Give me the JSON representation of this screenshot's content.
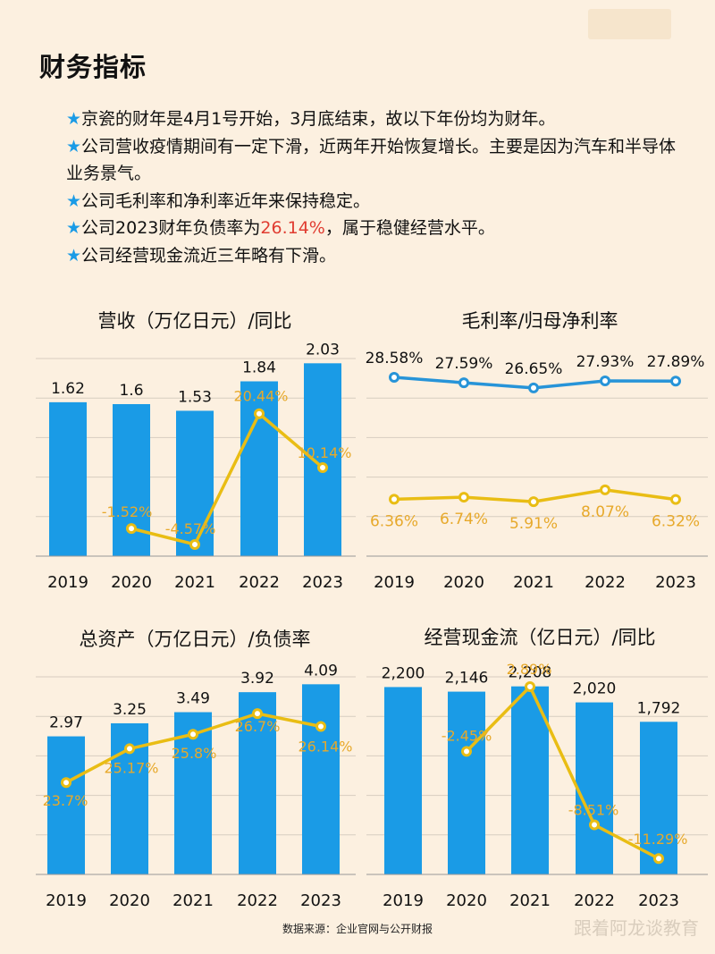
{
  "title": "财务指标",
  "bullets": [
    {
      "pre": "京瓷的财年是4月1号开始，3月底结束，故以下年份均为财年。"
    },
    {
      "pre": "公司营收疫情期间有一定下滑，近两年开始恢复增长。主要是因为汽车和半导体业务景气。"
    },
    {
      "pre": "公司毛利率和净利率近年来保持稳定。"
    },
    {
      "pre": "公司2023财年负债率为",
      "highlight": "26.14%",
      "post": "，属于稳健经营水平。"
    },
    {
      "pre": "公司经营现金流近三年略有下滑。"
    }
  ],
  "bullet_marker": "★",
  "colors": {
    "bar": "#1a9be6",
    "line": "#e9bd14",
    "line_blue": "#2794d8",
    "grid": "#d7cdc0",
    "label_gold": "#e7a92b",
    "highlight": "#e03c31",
    "background": "#fcf0e0"
  },
  "source_text": "数据来源：企业官网与公开财报",
  "watermark_text": "跟着阿龙谈教育",
  "chart_data": [
    {
      "type": "bar",
      "title": "营收（万亿日元）/同比",
      "categories": [
        "2019",
        "2020",
        "2021",
        "2022",
        "2023"
      ],
      "bars": {
        "values": [
          1.62,
          1.6,
          1.53,
          1.84,
          2.03
        ],
        "labels": [
          "1.62",
          "1.6",
          "1.53",
          "1.84",
          "2.03"
        ],
        "ylim": [
          0,
          2.08
        ]
      },
      "line": {
        "values": [
          null,
          -1.52,
          -4.57,
          20.44,
          10.14
        ],
        "labels": [
          "",
          "-1.52%",
          "-4.57%",
          "20.44%",
          "10.14%"
        ],
        "ylim": [
          -6.8,
          31
        ]
      }
    },
    {
      "type": "line",
      "title": "毛利率/归母净利率",
      "categories": [
        "2019",
        "2020",
        "2021",
        "2022",
        "2023"
      ],
      "series": [
        {
          "values": [
            28.58,
            27.59,
            26.65,
            27.93,
            27.89
          ],
          "labels": [
            "28.58%",
            "27.59%",
            "26.65%",
            "27.93%",
            "27.89%"
          ],
          "color": "#2794d8"
        },
        {
          "values": [
            6.36,
            6.74,
            5.91,
            8.07,
            6.32
          ],
          "labels": [
            "6.36%",
            "6.74%",
            "5.91%",
            "8.07%",
            "6.32%"
          ],
          "color": "#e9bd14"
        }
      ],
      "ylim": [
        -4,
        32
      ]
    },
    {
      "type": "bar",
      "title": "总资产（万亿日元）/负债率",
      "categories": [
        "2019",
        "2020",
        "2021",
        "2022",
        "2023"
      ],
      "bars": {
        "values": [
          2.97,
          3.25,
          3.49,
          3.92,
          4.09
        ],
        "labels": [
          "2.97",
          "3.25",
          "3.49",
          "3.92",
          "4.09"
        ],
        "ylim": [
          0,
          4.25
        ]
      },
      "line": {
        "values": [
          23.7,
          25.17,
          25.8,
          26.7,
          26.14
        ],
        "labels": [
          "23.7%",
          "25.17%",
          "25.8%",
          "26.7%",
          "26.14%"
        ],
        "ylim": [
          19.7,
          28.3
        ]
      }
    },
    {
      "type": "bar",
      "title": "经营现金流（亿日元）/同比",
      "categories": [
        "2019",
        "2020",
        "2021",
        "2022",
        "2023"
      ],
      "bars": {
        "values": [
          2200,
          2146,
          2208,
          2020,
          1792
        ],
        "labels": [
          "2,200",
          "2,146",
          "2,208",
          "2,020",
          "1,792"
        ],
        "ylim": [
          0,
          2320
        ]
      },
      "line": {
        "values": [
          null,
          -2.45,
          2.89,
          -8.51,
          -11.29
        ],
        "labels": [
          "",
          "-2.45%",
          "2.89%",
          "-8.51%",
          "-11.29%"
        ],
        "ylim": [
          -12.6,
          3.7
        ]
      }
    }
  ]
}
